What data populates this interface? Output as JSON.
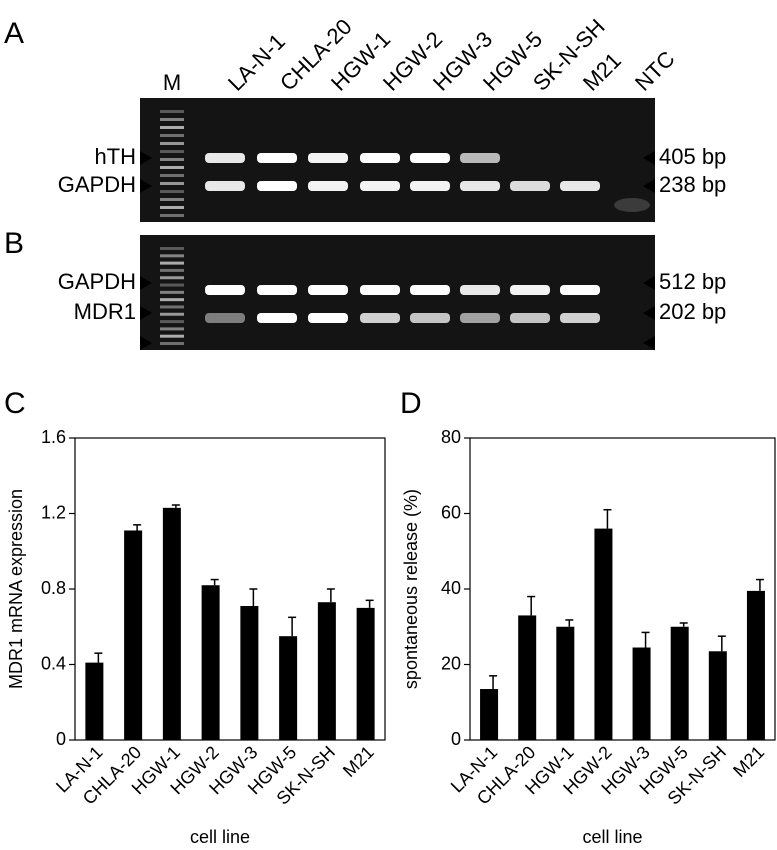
{
  "gels": [
    {
      "panel": "A",
      "marker_lane": "M",
      "lanes": [
        "LA-N-1",
        "CHLA-20",
        "HGW-1",
        "HGW-2",
        "HGW-3",
        "HGW-5",
        "SK-N-SH",
        "M21",
        "NTC"
      ],
      "bands_left": [
        "hTH",
        "GAPDH"
      ],
      "bands_right": [
        "405 bp",
        "238 bp"
      ]
    },
    {
      "panel": "B",
      "bands_left": [
        "GAPDH",
        "MDR1"
      ],
      "bands_right": [
        "512 bp",
        "202 bp"
      ]
    }
  ],
  "chart_data": [
    {
      "panel": "C",
      "type": "bar",
      "y_label": "MDR1 mRNA expression",
      "x_label": "cell line",
      "categories": [
        "LA-N-1",
        "CHLA-20",
        "HGW-1",
        "HGW-2",
        "HGW-3",
        "HGW-5",
        "SK-N-SH",
        "M21"
      ],
      "values": [
        0.41,
        1.11,
        1.23,
        0.82,
        0.71,
        0.55,
        0.73,
        0.7
      ],
      "errors": [
        0.05,
        0.03,
        0.015,
        0.03,
        0.09,
        0.1,
        0.07,
        0.04
      ],
      "color": "#000000",
      "ylim": [
        0,
        1.6
      ],
      "yticks": [
        0,
        0.4,
        0.8,
        1.2,
        1.6
      ]
    },
    {
      "panel": "D",
      "type": "bar",
      "y_label": "spontaneous release (%)",
      "x_label": "cell line",
      "categories": [
        "LA-N-1",
        "CHLA-20",
        "HGW-1",
        "HGW-2",
        "HGW-3",
        "HGW-5",
        "SK-N-SH",
        "M21"
      ],
      "values": [
        13.5,
        33,
        30,
        56,
        24.5,
        30,
        23.5,
        39.5
      ],
      "errors": [
        3.5,
        5,
        1.8,
        5,
        4,
        1,
        4,
        3
      ],
      "color": "#000000",
      "ylim": [
        0,
        80
      ],
      "yticks": [
        0,
        20,
        40,
        60,
        80
      ]
    }
  ]
}
